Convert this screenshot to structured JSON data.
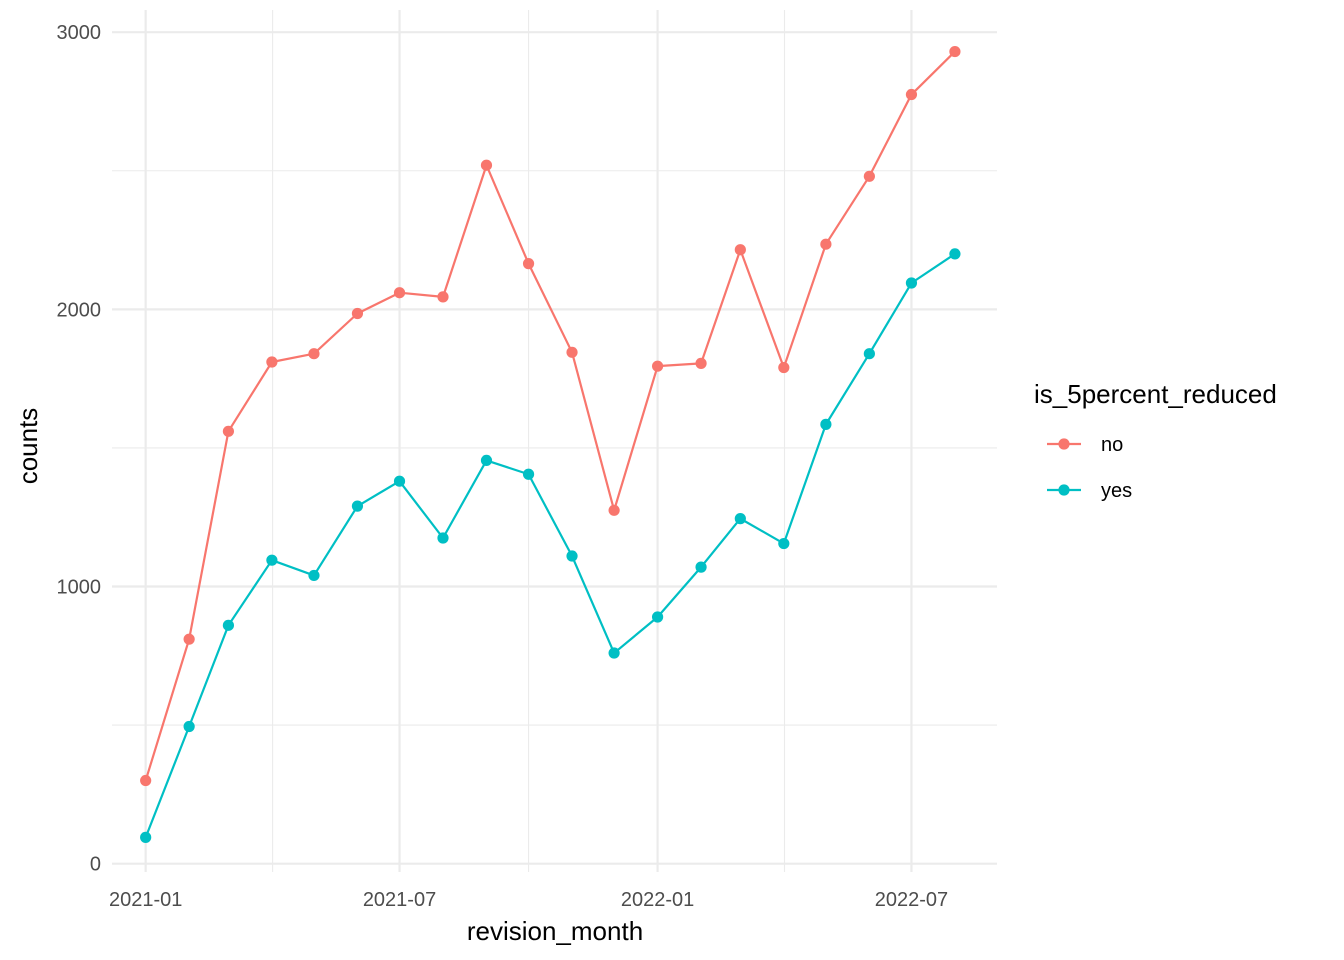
{
  "chart_data": {
    "type": "line",
    "title": "",
    "xlabel": "revision_month",
    "ylabel": "counts",
    "x": [
      "2021-01",
      "2021-02",
      "2021-03",
      "2021-04",
      "2021-05",
      "2021-06",
      "2021-07",
      "2021-08",
      "2021-09",
      "2021-10",
      "2021-11",
      "2021-12",
      "2022-01",
      "2022-02",
      "2022-03",
      "2022-04",
      "2022-05",
      "2022-06",
      "2022-07",
      "2022-08"
    ],
    "x_ticks": [
      "2021-01",
      "2021-07",
      "2022-01",
      "2022-07"
    ],
    "xlim": [
      "2020-12-08",
      "2022-08-31"
    ],
    "y_ticks": [
      0,
      1000,
      2000,
      3000
    ],
    "y_tick_labels": [
      "0",
      "1000",
      "2000",
      "3000"
    ],
    "ylim": [
      -30,
      3080
    ],
    "grid": true,
    "legend": {
      "title": "is_5percent_reduced",
      "position": "right"
    },
    "series": [
      {
        "name": "no",
        "color": "#F8766D",
        "values": [
          300,
          810,
          1560,
          1810,
          1840,
          1985,
          2060,
          2045,
          2520,
          2165,
          1845,
          1275,
          1795,
          1805,
          2215,
          1790,
          2235,
          2480,
          2775,
          2930
        ]
      },
      {
        "name": "yes",
        "color": "#00BFC4",
        "values": [
          95,
          495,
          860,
          1095,
          1040,
          1290,
          1380,
          1175,
          1455,
          1405,
          1110,
          760,
          890,
          1070,
          1245,
          1155,
          1585,
          1840,
          2095,
          2200
        ]
      }
    ]
  }
}
